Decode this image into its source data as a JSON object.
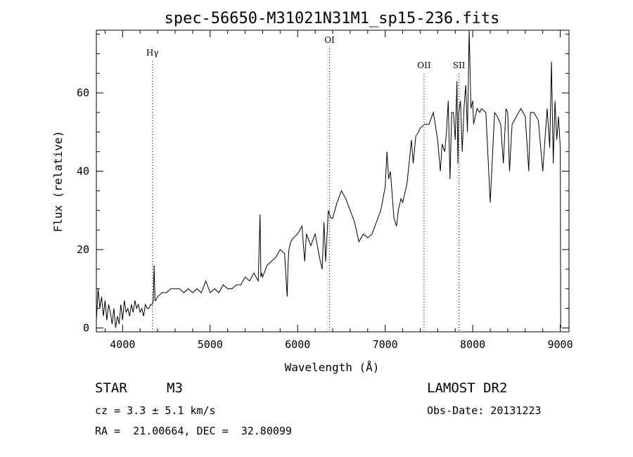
{
  "chart_data": {
    "type": "line",
    "title": "spec-56650-M31021N31M1_sp15-236.fits",
    "xlabel": "Wavelength (Å)",
    "ylabel": "Flux (relative)",
    "xlim": [
      3700,
      9100
    ],
    "ylim": [
      -1,
      76
    ],
    "xticks": [
      4000,
      5000,
      6000,
      7000,
      8000,
      9000
    ],
    "yticks": [
      0,
      20,
      40,
      60
    ],
    "grid": false,
    "series": [
      {
        "x": [
          3700,
          3720,
          3740,
          3760,
          3780,
          3800,
          3820,
          3840,
          3860,
          3880,
          3900,
          3920,
          3940,
          3960,
          3980,
          4000,
          4020,
          4040,
          4060,
          4080,
          4100,
          4120,
          4140,
          4160,
          4180,
          4200,
          4220,
          4240,
          4260,
          4280,
          4300,
          4320,
          4340,
          4350,
          4360,
          4370,
          4380,
          4400,
          4450,
          4500,
          4550,
          4600,
          4650,
          4700,
          4750,
          4800,
          4850,
          4900,
          4950,
          5000,
          5050,
          5100,
          5150,
          5200,
          5250,
          5300,
          5350,
          5400,
          5450,
          5500,
          5550,
          5570,
          5580,
          5590,
          5600,
          5650,
          5700,
          5750,
          5800,
          5850,
          5880,
          5890,
          5900,
          5920,
          5950,
          6000,
          6050,
          6080,
          6100,
          6150,
          6200,
          6250,
          6280,
          6300,
          6320,
          6350,
          6380,
          6400,
          6450,
          6500,
          6550,
          6600,
          6650,
          6700,
          6750,
          6800,
          6850,
          6900,
          6950,
          7000,
          7020,
          7040,
          7060,
          7080,
          7100,
          7130,
          7150,
          7180,
          7200,
          7250,
          7300,
          7320,
          7350,
          7380,
          7400,
          7450,
          7500,
          7550,
          7600,
          7630,
          7650,
          7680,
          7700,
          7720,
          7740,
          7760,
          7780,
          7800,
          7820,
          7830,
          7840,
          7860,
          7880,
          7900,
          7920,
          7940,
          7960,
          7980,
          8000,
          8010,
          8030,
          8050,
          8080,
          8100,
          8150,
          8200,
          8250,
          8280,
          8300,
          8320,
          8350,
          8380,
          8400,
          8420,
          8450,
          8500,
          8550,
          8600,
          8640,
          8660,
          8700,
          8750,
          8800,
          8850,
          8880,
          8900,
          8920,
          8940,
          8960,
          8980,
          9000,
          9005
        ],
        "y": [
          2,
          10,
          5,
          8,
          3,
          7,
          2,
          6,
          4,
          1,
          5,
          0,
          3,
          1,
          6,
          2,
          7,
          4,
          5,
          3,
          6,
          4,
          7,
          5,
          6,
          4,
          5,
          3,
          6,
          5,
          5,
          6,
          6,
          7,
          16,
          7,
          7,
          8,
          9,
          9,
          10,
          10,
          10,
          9,
          10,
          9,
          10,
          9,
          12,
          9,
          10,
          9,
          11,
          10,
          10,
          11,
          11,
          13,
          12,
          14,
          12,
          29,
          13,
          14,
          13,
          16,
          17,
          18,
          20,
          19,
          8,
          16,
          20,
          22,
          23,
          24,
          26,
          17,
          24,
          21,
          24,
          18,
          15,
          27,
          17,
          30,
          28,
          28,
          32,
          35,
          33,
          30,
          27,
          22,
          24,
          23,
          24,
          27,
          30,
          36,
          45,
          38,
          40,
          34,
          28,
          26,
          30,
          33,
          32,
          37,
          48,
          42,
          49,
          50,
          51,
          52,
          52,
          55,
          48,
          40,
          47,
          45,
          50,
          58,
          38,
          55,
          55,
          48,
          63,
          42,
          55,
          58,
          45,
          56,
          62,
          50,
          78,
          56,
          58,
          52,
          54,
          56,
          55,
          56,
          55,
          32,
          55,
          54,
          53,
          52,
          42,
          56,
          55,
          40,
          52,
          54,
          56,
          54,
          40,
          55,
          55,
          53,
          40,
          56,
          46,
          68,
          42,
          58,
          48,
          54,
          46,
          0
        ]
      }
    ],
    "annotations": [
      {
        "label": "Hγ",
        "x": 4340
      },
      {
        "label": "OI",
        "x": 6364
      },
      {
        "label": "OII",
        "x": 7444
      },
      {
        "label": "SII",
        "x": 7843
      }
    ]
  },
  "info": {
    "class_label": "STAR",
    "subclass": "M3",
    "survey": "LAMOST DR2",
    "cz": "cz = 3.3 ± 5.1 km/s",
    "obs_date": "Obs-Date: 20131223",
    "radec": "RA =  21.00664, DEC =  32.80099"
  }
}
